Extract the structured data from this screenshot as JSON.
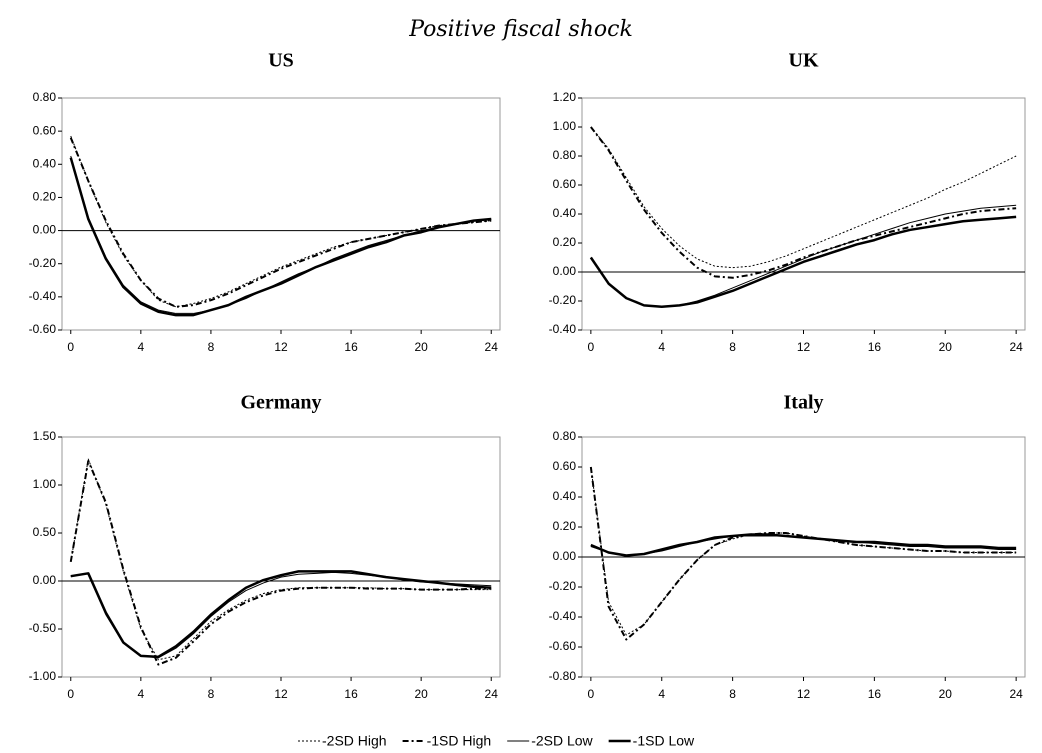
{
  "title": "Positive fiscal shock",
  "chart_data": [
    {
      "type": "line",
      "title": "US",
      "x": [
        0,
        1,
        2,
        3,
        4,
        5,
        6,
        7,
        8,
        9,
        10,
        11,
        12,
        13,
        14,
        15,
        16,
        17,
        18,
        19,
        20,
        21,
        22,
        23,
        24
      ],
      "xlim": [
        -0.5,
        24.5
      ],
      "xticks": [
        0,
        4,
        8,
        12,
        16,
        20,
        24
      ],
      "ylim": [
        -0.6,
        0.8
      ],
      "yticks": [
        {
          "value": -0.6,
          "label": "-0.60"
        },
        {
          "value": -0.4,
          "label": "-0.40"
        },
        {
          "value": -0.2,
          "label": "-0.20"
        },
        {
          "value": 0,
          "label": "0.00"
        },
        {
          "value": 0.2,
          "label": "0.20"
        },
        {
          "value": 0.4,
          "label": "0.40"
        },
        {
          "value": 0.6,
          "label": "0.60"
        },
        {
          "value": 0.8,
          "label": "0.80"
        }
      ],
      "series": [
        {
          "name": "-2SD High",
          "color": "#000000",
          "width": 1,
          "dash": "2,2",
          "values": [
            0.57,
            0.3,
            0.05,
            -0.15,
            -0.3,
            -0.42,
            -0.46,
            -0.44,
            -0.41,
            -0.37,
            -0.32,
            -0.27,
            -0.22,
            -0.18,
            -0.14,
            -0.1,
            -0.07,
            -0.05,
            -0.03,
            -0.01,
            0.01,
            0.03,
            0.04,
            0.05,
            0.06
          ]
        },
        {
          "name": "-1SD High",
          "color": "#000000",
          "width": 2,
          "dash": "6,3,2,3",
          "values": [
            0.56,
            0.3,
            0.06,
            -0.14,
            -0.3,
            -0.41,
            -0.46,
            -0.45,
            -0.42,
            -0.38,
            -0.33,
            -0.28,
            -0.23,
            -0.19,
            -0.15,
            -0.11,
            -0.07,
            -0.05,
            -0.03,
            -0.01,
            0.01,
            0.03,
            0.04,
            0.05,
            0.06
          ]
        },
        {
          "name": "-2SD Low",
          "color": "#000000",
          "width": 1,
          "dash": "none",
          "values": [
            0.45,
            0.08,
            -0.16,
            -0.33,
            -0.43,
            -0.48,
            -0.5,
            -0.5,
            -0.48,
            -0.45,
            -0.41,
            -0.36,
            -0.31,
            -0.26,
            -0.22,
            -0.17,
            -0.13,
            -0.09,
            -0.06,
            -0.03,
            0,
            0.02,
            0.04,
            0.06,
            0.07
          ]
        },
        {
          "name": "-1SD Low",
          "color": "#000000",
          "width": 2.5,
          "dash": "none",
          "values": [
            0.44,
            0.07,
            -0.17,
            -0.34,
            -0.44,
            -0.49,
            -0.51,
            -0.51,
            -0.48,
            -0.45,
            -0.4,
            -0.36,
            -0.32,
            -0.27,
            -0.22,
            -0.18,
            -0.14,
            -0.1,
            -0.07,
            -0.03,
            -0.01,
            0.02,
            0.04,
            0.06,
            0.07
          ]
        }
      ]
    },
    {
      "type": "line",
      "title": "UK",
      "x": [
        0,
        1,
        2,
        3,
        4,
        5,
        6,
        7,
        8,
        9,
        10,
        11,
        12,
        13,
        14,
        15,
        16,
        17,
        18,
        19,
        20,
        21,
        22,
        23,
        24
      ],
      "xlim": [
        -0.5,
        24.5
      ],
      "xticks": [
        0,
        4,
        8,
        12,
        16,
        20,
        24
      ],
      "ylim": [
        -0.4,
        1.2
      ],
      "yticks": [
        {
          "value": -0.4,
          "label": "-0.40"
        },
        {
          "value": -0.2,
          "label": "-0.20"
        },
        {
          "value": 0,
          "label": "0.00"
        },
        {
          "value": 0.2,
          "label": "0.20"
        },
        {
          "value": 0.4,
          "label": "0.40"
        },
        {
          "value": 0.6,
          "label": "0.60"
        },
        {
          "value": 0.8,
          "label": "0.80"
        },
        {
          "value": 1,
          "label": "1.00"
        },
        {
          "value": 1.2,
          "label": "1.20"
        }
      ],
      "series": [
        {
          "name": "-2SD High",
          "color": "#000000",
          "width": 1,
          "dash": "2,2",
          "values": [
            1.0,
            0.85,
            0.65,
            0.45,
            0.3,
            0.18,
            0.09,
            0.04,
            0.03,
            0.04,
            0.07,
            0.11,
            0.16,
            0.21,
            0.26,
            0.31,
            0.36,
            0.41,
            0.46,
            0.51,
            0.57,
            0.62,
            0.68,
            0.74,
            0.8
          ]
        },
        {
          "name": "-1SD High",
          "color": "#000000",
          "width": 2,
          "dash": "6,3,2,3",
          "values": [
            1.0,
            0.84,
            0.63,
            0.43,
            0.27,
            0.14,
            0.03,
            -0.03,
            -0.04,
            -0.02,
            0.01,
            0.05,
            0.1,
            0.14,
            0.18,
            0.22,
            0.25,
            0.28,
            0.31,
            0.34,
            0.37,
            0.4,
            0.42,
            0.43,
            0.44
          ]
        },
        {
          "name": "-2SD Low",
          "color": "#000000",
          "width": 1,
          "dash": "none",
          "values": [
            0.1,
            -0.08,
            -0.18,
            -0.23,
            -0.24,
            -0.23,
            -0.2,
            -0.16,
            -0.11,
            -0.06,
            -0.01,
            0.04,
            0.09,
            0.14,
            0.18,
            0.22,
            0.26,
            0.3,
            0.34,
            0.37,
            0.4,
            0.42,
            0.44,
            0.45,
            0.46
          ]
        },
        {
          "name": "-1SD Low",
          "color": "#000000",
          "width": 2.5,
          "dash": "none",
          "values": [
            0.1,
            -0.08,
            -0.18,
            -0.23,
            -0.24,
            -0.23,
            -0.21,
            -0.17,
            -0.13,
            -0.08,
            -0.03,
            0.02,
            0.07,
            0.11,
            0.15,
            0.19,
            0.22,
            0.26,
            0.29,
            0.31,
            0.33,
            0.35,
            0.36,
            0.37,
            0.38
          ]
        }
      ]
    },
    {
      "type": "line",
      "title": "Germany",
      "x": [
        0,
        1,
        2,
        3,
        4,
        5,
        6,
        7,
        8,
        9,
        10,
        11,
        12,
        13,
        14,
        15,
        16,
        17,
        18,
        19,
        20,
        21,
        22,
        23,
        24
      ],
      "xlim": [
        -0.5,
        24.5
      ],
      "xticks": [
        0,
        4,
        8,
        12,
        16,
        20,
        24
      ],
      "ylim": [
        -1,
        1.5
      ],
      "yticks": [
        {
          "value": -1,
          "label": "-1.00"
        },
        {
          "value": -0.5,
          "label": "-0.50"
        },
        {
          "value": 0,
          "label": "0.00"
        },
        {
          "value": 0.5,
          "label": "0.50"
        },
        {
          "value": 1,
          "label": "1.00"
        },
        {
          "value": 1.5,
          "label": "1.50"
        }
      ],
      "series": [
        {
          "name": "-2SD High",
          "color": "#000000",
          "width": 1,
          "dash": "2,2",
          "values": [
            0.2,
            1.27,
            0.8,
            0.1,
            -0.5,
            -0.82,
            -0.78,
            -0.6,
            -0.42,
            -0.3,
            -0.2,
            -0.13,
            -0.09,
            -0.07,
            -0.07,
            -0.07,
            -0.07,
            -0.07,
            -0.08,
            -0.08,
            -0.09,
            -0.09,
            -0.09,
            -0.09,
            -0.09
          ]
        },
        {
          "name": "-1SD High",
          "color": "#000000",
          "width": 2,
          "dash": "6,3,2,3",
          "values": [
            0.2,
            1.25,
            0.82,
            0.12,
            -0.48,
            -0.87,
            -0.8,
            -0.63,
            -0.45,
            -0.32,
            -0.22,
            -0.15,
            -0.1,
            -0.08,
            -0.07,
            -0.07,
            -0.07,
            -0.08,
            -0.08,
            -0.08,
            -0.09,
            -0.09,
            -0.09,
            -0.08,
            -0.08
          ]
        },
        {
          "name": "-2SD Low",
          "color": "#000000",
          "width": 1,
          "dash": "none",
          "values": [
            0.05,
            0.08,
            -0.35,
            -0.65,
            -0.78,
            -0.8,
            -0.7,
            -0.55,
            -0.37,
            -0.22,
            -0.1,
            -0.02,
            0.04,
            0.07,
            0.08,
            0.09,
            0.08,
            0.06,
            0.04,
            0.01,
            -0.01,
            -0.02,
            -0.03,
            -0.04,
            -0.05
          ]
        },
        {
          "name": "-1SD Low",
          "color": "#000000",
          "width": 2.5,
          "dash": "none",
          "values": [
            0.05,
            0.08,
            -0.33,
            -0.64,
            -0.78,
            -0.79,
            -0.68,
            -0.53,
            -0.35,
            -0.2,
            -0.07,
            0.01,
            0.06,
            0.1,
            0.1,
            0.1,
            0.1,
            0.07,
            0.04,
            0.02,
            0,
            -0.02,
            -0.04,
            -0.06,
            -0.07
          ]
        }
      ]
    },
    {
      "type": "line",
      "title": "Italy",
      "x": [
        0,
        1,
        2,
        3,
        4,
        5,
        6,
        7,
        8,
        9,
        10,
        11,
        12,
        13,
        14,
        15,
        16,
        17,
        18,
        19,
        20,
        21,
        22,
        23,
        24
      ],
      "xlim": [
        -0.5,
        24.5
      ],
      "xticks": [
        0,
        4,
        8,
        12,
        16,
        20,
        24
      ],
      "ylim": [
        -0.8,
        0.8
      ],
      "yticks": [
        {
          "value": -0.8,
          "label": "-0.80"
        },
        {
          "value": -0.6,
          "label": "-0.60"
        },
        {
          "value": -0.4,
          "label": "-0.40"
        },
        {
          "value": -0.2,
          "label": "-0.20"
        },
        {
          "value": 0,
          "label": "0.00"
        },
        {
          "value": 0.2,
          "label": "0.20"
        },
        {
          "value": 0.4,
          "label": "0.40"
        },
        {
          "value": 0.6,
          "label": "0.60"
        },
        {
          "value": 0.8,
          "label": "0.80"
        }
      ],
      "series": [
        {
          "name": "-2SD High",
          "color": "#000000",
          "width": 1,
          "dash": "2,2",
          "values": [
            0.6,
            -0.3,
            -0.52,
            -0.45,
            -0.3,
            -0.15,
            -0.02,
            0.08,
            0.12,
            0.15,
            0.16,
            0.16,
            0.14,
            0.12,
            0.1,
            0.08,
            0.07,
            0.06,
            0.05,
            0.04,
            0.04,
            0.03,
            0.03,
            0.03,
            0.03
          ]
        },
        {
          "name": "-1SD High",
          "color": "#000000",
          "width": 2,
          "dash": "6,3,2,3",
          "values": [
            0.6,
            -0.33,
            -0.55,
            -0.45,
            -0.3,
            -0.15,
            -0.02,
            0.08,
            0.13,
            0.15,
            0.16,
            0.16,
            0.14,
            0.12,
            0.1,
            0.08,
            0.07,
            0.06,
            0.05,
            0.04,
            0.04,
            0.03,
            0.03,
            0.03,
            0.03
          ]
        },
        {
          "name": "-2SD Low",
          "color": "#000000",
          "width": 1,
          "dash": "none",
          "values": [
            0.07,
            0.03,
            0.01,
            0.02,
            0.04,
            0.07,
            0.1,
            0.12,
            0.14,
            0.14,
            0.14,
            0.14,
            0.13,
            0.12,
            0.11,
            0.1,
            0.09,
            0.08,
            0.07,
            0.07,
            0.06,
            0.06,
            0.06,
            0.05,
            0.05
          ]
        },
        {
          "name": "-1SD Low",
          "color": "#000000",
          "width": 2.5,
          "dash": "none",
          "values": [
            0.08,
            0.03,
            0.01,
            0.02,
            0.05,
            0.08,
            0.1,
            0.13,
            0.14,
            0.15,
            0.15,
            0.14,
            0.13,
            0.12,
            0.11,
            0.1,
            0.1,
            0.09,
            0.08,
            0.08,
            0.07,
            0.07,
            0.07,
            0.06,
            0.06
          ]
        }
      ]
    }
  ]
}
